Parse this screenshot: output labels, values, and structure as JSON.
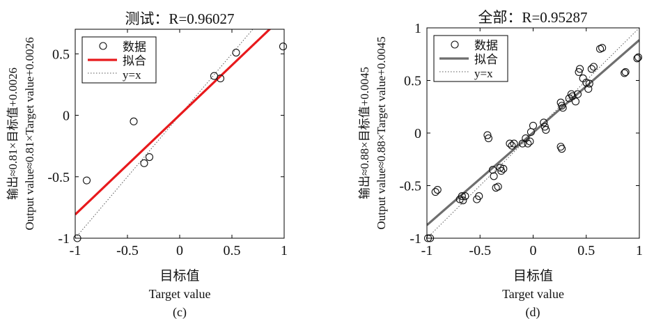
{
  "colors": {
    "fit_left": "#e8191c",
    "fit_right": "#6e6e6e",
    "axis": "#000000",
    "ref": "#555555",
    "marker": "#111111"
  },
  "chart_data": [
    {
      "type": "scatter",
      "title": "测试：R=0.96027",
      "xlabel_cn": "目标值",
      "xlabel_en": "Target value",
      "ylabel_cn": "输出≈0.81×目标值+0.0026",
      "ylabel_en": "Output value≈0.81×Target value+0.0026",
      "caption": "(c)",
      "xlim": [
        -1,
        1
      ],
      "ylim": [
        -1,
        0.7
      ],
      "xticks": [
        "-1",
        "-0.5",
        "0",
        "0.5",
        "1"
      ],
      "yticks": [
        "-1",
        "-0.5",
        "0",
        "0.5"
      ],
      "legend": {
        "position": "top-left",
        "entries": [
          "数据",
          "拟合",
          "y=x"
        ]
      },
      "fit": {
        "slope": 0.81,
        "intercept": 0.0026
      },
      "points": [
        {
          "x": -0.98,
          "y": -1.0
        },
        {
          "x": -0.89,
          "y": -0.53
        },
        {
          "x": -0.44,
          "y": -0.05
        },
        {
          "x": -0.34,
          "y": -0.39
        },
        {
          "x": -0.29,
          "y": -0.34
        },
        {
          "x": 0.33,
          "y": 0.32
        },
        {
          "x": 0.39,
          "y": 0.3
        },
        {
          "x": 0.54,
          "y": 0.51
        },
        {
          "x": 0.99,
          "y": 0.56
        }
      ]
    },
    {
      "type": "scatter",
      "title": "全部：R=0.95287",
      "xlabel_cn": "目标值",
      "xlabel_en": "Target value",
      "ylabel_cn": "输出≈0.88×目标值+0.0045",
      "ylabel_en": "Output value≈0.88×Target value+0.0045",
      "caption": "(d)",
      "xlim": [
        -1,
        1
      ],
      "ylim": [
        -1,
        1
      ],
      "xticks": [
        "-1",
        "-0.5",
        "0",
        "0.5",
        "1"
      ],
      "yticks": [
        "-1",
        "-0.5",
        "0",
        "0.5",
        "1"
      ],
      "legend": {
        "position": "top-left",
        "entries": [
          "数据",
          "拟合",
          "y=x"
        ]
      },
      "fit": {
        "slope": 0.88,
        "intercept": 0.0045
      },
      "points": [
        {
          "x": -0.99,
          "y": -1.0
        },
        {
          "x": -0.97,
          "y": -1.0
        },
        {
          "x": -0.92,
          "y": -0.56
        },
        {
          "x": -0.9,
          "y": -0.54
        },
        {
          "x": -0.69,
          "y": -0.63
        },
        {
          "x": -0.67,
          "y": -0.6
        },
        {
          "x": -0.66,
          "y": -0.64
        },
        {
          "x": -0.64,
          "y": -0.6
        },
        {
          "x": -0.53,
          "y": -0.63
        },
        {
          "x": -0.51,
          "y": -0.6
        },
        {
          "x": -0.43,
          "y": -0.02
        },
        {
          "x": -0.42,
          "y": -0.05
        },
        {
          "x": -0.38,
          "y": -0.35
        },
        {
          "x": -0.37,
          "y": -0.41
        },
        {
          "x": -0.35,
          "y": -0.52
        },
        {
          "x": -0.33,
          "y": -0.51
        },
        {
          "x": -0.31,
          "y": -0.33
        },
        {
          "x": -0.3,
          "y": -0.36
        },
        {
          "x": -0.28,
          "y": -0.34
        },
        {
          "x": -0.22,
          "y": -0.1
        },
        {
          "x": -0.2,
          "y": -0.12
        },
        {
          "x": -0.18,
          "y": -0.1
        },
        {
          "x": -0.1,
          "y": -0.1
        },
        {
          "x": -0.07,
          "y": -0.05
        },
        {
          "x": -0.05,
          "y": -0.1
        },
        {
          "x": -0.03,
          "y": -0.08
        },
        {
          "x": -0.02,
          "y": 0.01
        },
        {
          "x": 0.0,
          "y": 0.07
        },
        {
          "x": 0.1,
          "y": 0.1
        },
        {
          "x": 0.11,
          "y": 0.06
        },
        {
          "x": 0.12,
          "y": 0.03
        },
        {
          "x": 0.26,
          "y": -0.13
        },
        {
          "x": 0.27,
          "y": -0.15
        },
        {
          "x": 0.26,
          "y": 0.29
        },
        {
          "x": 0.27,
          "y": 0.26
        },
        {
          "x": 0.28,
          "y": 0.24
        },
        {
          "x": 0.34,
          "y": 0.33
        },
        {
          "x": 0.36,
          "y": 0.37
        },
        {
          "x": 0.37,
          "y": 0.35
        },
        {
          "x": 0.4,
          "y": 0.3
        },
        {
          "x": 0.42,
          "y": 0.37
        },
        {
          "x": 0.43,
          "y": 0.58
        },
        {
          "x": 0.44,
          "y": 0.61
        },
        {
          "x": 0.47,
          "y": 0.52
        },
        {
          "x": 0.5,
          "y": 0.48
        },
        {
          "x": 0.52,
          "y": 0.42
        },
        {
          "x": 0.53,
          "y": 0.47
        },
        {
          "x": 0.55,
          "y": 0.61
        },
        {
          "x": 0.57,
          "y": 0.63
        },
        {
          "x": 0.63,
          "y": 0.8
        },
        {
          "x": 0.65,
          "y": 0.81
        },
        {
          "x": 0.86,
          "y": 0.57
        },
        {
          "x": 0.87,
          "y": 0.58
        },
        {
          "x": 0.98,
          "y": 0.71
        },
        {
          "x": 0.99,
          "y": 0.72
        }
      ]
    }
  ]
}
